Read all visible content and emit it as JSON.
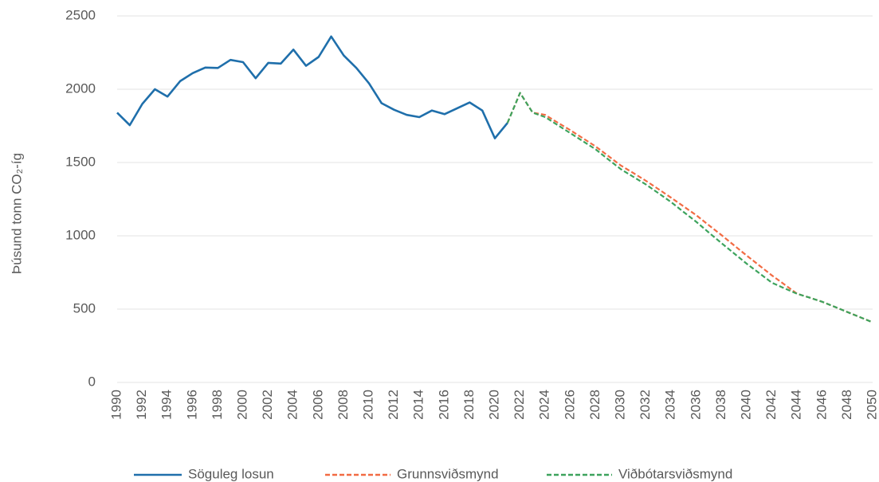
{
  "chart_data": {
    "type": "line",
    "y_label": "Þúsund tonn CO₂-íg",
    "x": [
      1990,
      1991,
      1992,
      1993,
      1994,
      1995,
      1996,
      1997,
      1998,
      1999,
      2000,
      2001,
      2002,
      2003,
      2004,
      2005,
      2006,
      2007,
      2008,
      2009,
      2010,
      2011,
      2012,
      2013,
      2014,
      2015,
      2016,
      2017,
      2018,
      2019,
      2020,
      2021,
      2022,
      2023,
      2024,
      2025,
      2026,
      2027,
      2028,
      2029,
      2030,
      2031,
      2032,
      2033,
      2034,
      2035,
      2036,
      2037,
      2038,
      2039,
      2040,
      2041,
      2042,
      2043,
      2044,
      2045,
      2046,
      2047,
      2048,
      2049,
      2050
    ],
    "xlim": [
      1990,
      2050
    ],
    "xticks": [
      1990,
      1992,
      1994,
      1996,
      1998,
      2000,
      2002,
      2004,
      2006,
      2008,
      2010,
      2012,
      2014,
      2016,
      2018,
      2020,
      2022,
      2024,
      2026,
      2028,
      2030,
      2032,
      2034,
      2036,
      2038,
      2040,
      2042,
      2044,
      2046,
      2048,
      2050
    ],
    "ylim": [
      0,
      2500
    ],
    "yticks": [
      0,
      500,
      1000,
      1500,
      2000,
      2500
    ],
    "grid": true,
    "legend": "bottom",
    "series": [
      {
        "name": "Söguleg losun",
        "color": "#1f6fab",
        "dash": "solid",
        "values": [
          1840,
          1755,
          1900,
          2000,
          1950,
          2055,
          2110,
          2148,
          2145,
          2200,
          2185,
          2075,
          2180,
          2175,
          2270,
          2160,
          2220,
          2360,
          2230,
          2145,
          2040,
          1905,
          1860,
          1825,
          1810,
          1855,
          1830,
          1870,
          1910,
          1855,
          1665,
          1770,
          null,
          null,
          null,
          null,
          null,
          null,
          null,
          null,
          null,
          null,
          null,
          null,
          null,
          null,
          null,
          null,
          null,
          null,
          null,
          null,
          null,
          null,
          null,
          null,
          null,
          null,
          null,
          null,
          null
        ]
      },
      {
        "name": "Grunnsviðsmynd",
        "color": "#f26b43",
        "dash": "dashed",
        "values": [
          null,
          null,
          null,
          null,
          null,
          null,
          null,
          null,
          null,
          null,
          null,
          null,
          null,
          null,
          null,
          null,
          null,
          null,
          null,
          null,
          null,
          null,
          null,
          null,
          null,
          null,
          null,
          null,
          null,
          null,
          null,
          1770,
          1975,
          1840,
          1825,
          1772,
          1720,
          1665,
          1610,
          1545,
          1480,
          1428,
          1375,
          1318,
          1260,
          1200,
          1140,
          1072,
          1005,
          935,
          865,
          798,
          730,
          668,
          605,
          578,
          550,
          515,
          480,
          445,
          410
        ]
      },
      {
        "name": "Viðbótarsviðsmynd",
        "color": "#3da35d",
        "dash": "dashed",
        "values": [
          null,
          null,
          null,
          null,
          null,
          null,
          null,
          null,
          null,
          null,
          null,
          null,
          null,
          null,
          null,
          null,
          null,
          null,
          null,
          null,
          null,
          null,
          null,
          null,
          null,
          null,
          null,
          null,
          null,
          null,
          null,
          1770,
          1975,
          1840,
          1810,
          1755,
          1700,
          1645,
          1590,
          1522,
          1455,
          1402,
          1350,
          1290,
          1230,
          1162,
          1095,
          1022,
          950,
          880,
          810,
          745,
          680,
          642,
          605,
          578,
          550,
          515,
          480,
          445,
          410
        ]
      }
    ]
  }
}
